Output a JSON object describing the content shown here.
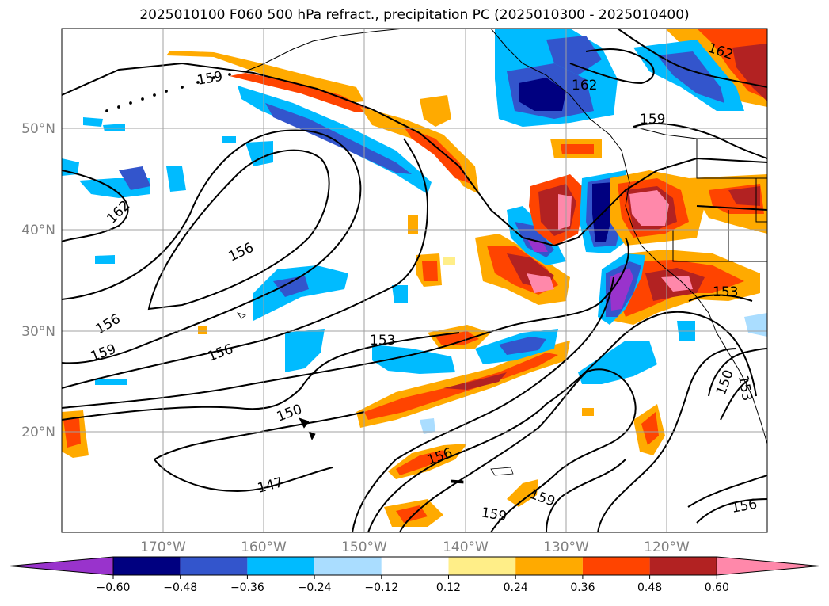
{
  "title": "2025010100 F060 500 hPa refract., precipitation PC (2025010300 - 2025010400)",
  "latitude_labels": [
    "50°N",
    "40°N",
    "30°N",
    "20°N"
  ],
  "longitude_labels": [
    "170°W",
    "160°W",
    "150°W",
    "140°W",
    "130°W",
    "120°W"
  ],
  "colorbar": {
    "tick_labels": [
      "−0.60",
      "−0.48",
      "−0.36",
      "−0.24",
      "−0.12",
      "0.12",
      "0.24",
      "0.36",
      "0.48",
      "0.60"
    ],
    "colors": [
      "#9933cc",
      "#000080",
      "#3355cc",
      "#00bbff",
      "#aaddff",
      "#ffffff",
      "#ffee88",
      "#ffaa00",
      "#ff4400",
      "#b22222",
      "#ff88aa"
    ]
  },
  "contour_labels": [
    {
      "id": "c162-ne",
      "text": "162"
    },
    {
      "id": "c162-bc",
      "text": "162"
    },
    {
      "id": "c159-ne",
      "text": "159"
    },
    {
      "id": "c159-nw",
      "text": "159"
    },
    {
      "id": "c162-w",
      "text": "162"
    },
    {
      "id": "c156-mid",
      "text": "156"
    },
    {
      "id": "c156-w",
      "text": "156"
    },
    {
      "id": "c159-w",
      "text": "159"
    },
    {
      "id": "c156-sw",
      "text": "156"
    },
    {
      "id": "c153-mid",
      "text": "153"
    },
    {
      "id": "c153-e",
      "text": "153"
    },
    {
      "id": "c150-mid",
      "text": "150"
    },
    {
      "id": "c150-e",
      "text": "150"
    },
    {
      "id": "c153-se",
      "text": "153"
    },
    {
      "id": "c147",
      "text": "147"
    },
    {
      "id": "c156-s",
      "text": "156"
    },
    {
      "id": "c159-s1",
      "text": "159"
    },
    {
      "id": "c159-s2",
      "text": "159"
    },
    {
      "id": "c156-se",
      "text": "156"
    }
  ]
}
